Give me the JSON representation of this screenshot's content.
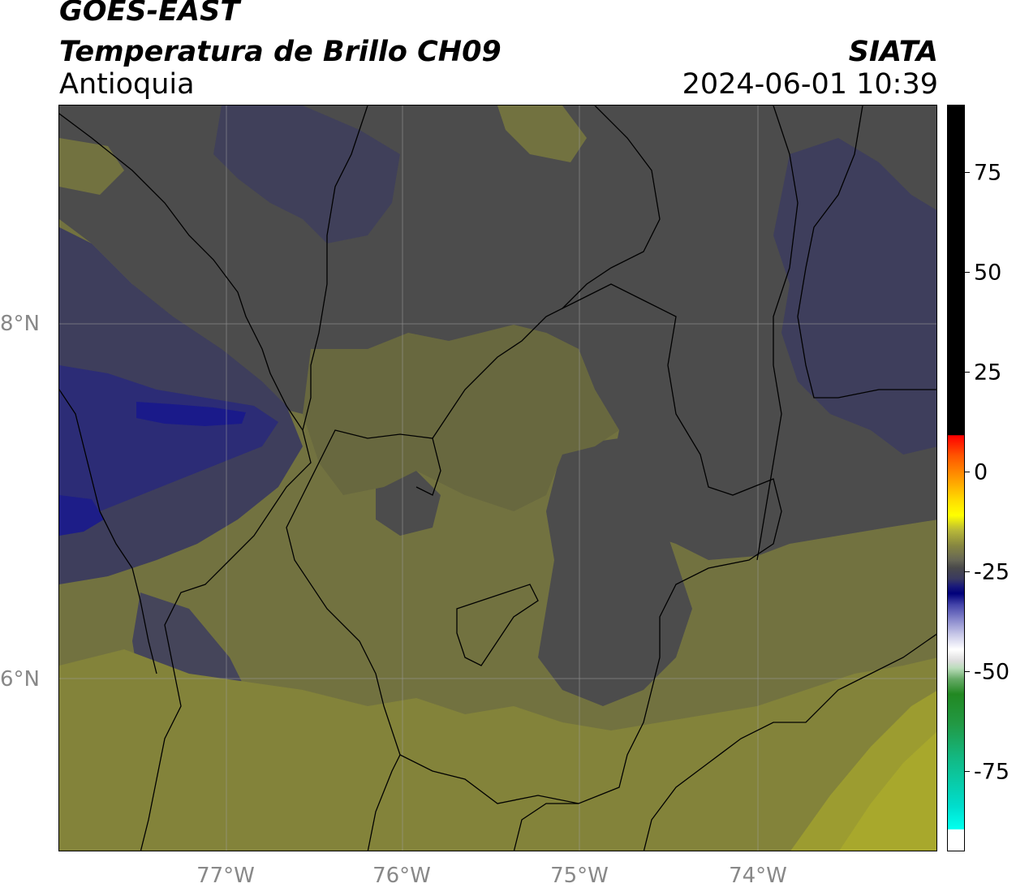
{
  "header": {
    "satellite": "GOES-EAST",
    "product": "Temperatura de Brillo CH09",
    "region": "Antioquia",
    "brand": "SIATA",
    "timestamp": "2024-06-01 10:39"
  },
  "map": {
    "lon_range": [
      -77.95,
      -72.9
    ],
    "lat_range": [
      5.05,
      9.25
    ],
    "lon_ticks": [
      "77°W",
      "76°W",
      "75°W",
      "74°W"
    ],
    "lat_ticks": [
      "8°N",
      "6°N"
    ],
    "gridlines": true
  },
  "colorbar": {
    "ticks": [
      "75",
      "50",
      "25",
      "0",
      "-25",
      "-50",
      "-75"
    ],
    "tick_values": [
      75,
      50,
      25,
      0,
      -25,
      -50,
      -75
    ],
    "range": [
      -95,
      92
    ],
    "colors": {
      "warm": "#000000",
      "hot": "#ff0000",
      "yellow": "#ffff00",
      "grey": "#4a4a4a",
      "navy": "#00007a",
      "white": "#ffffff",
      "green": "#228822",
      "cyan": "#00ffee"
    }
  },
  "field_colors": {
    "olive_light": "#8b8b35",
    "olive": "#77773f",
    "olive_dark": "#656548",
    "grey": "#4c4c4c",
    "slate_blue": "#3e3e5c",
    "blue": "#2c2c76",
    "navy": "#1a1a8a",
    "yellow_bright": "#a8a82c"
  }
}
